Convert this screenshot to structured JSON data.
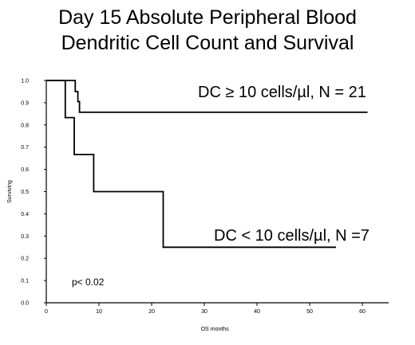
{
  "chart_data": {
    "type": "line",
    "title": [
      "Day 15 Absolute Peripheral Blood",
      "Dendritic Cell Count and Survival"
    ],
    "xlabel": "OS months",
    "ylabel": "Surviving",
    "xlim": [
      0,
      65
    ],
    "ylim": [
      0,
      1.0
    ],
    "x_ticks": [
      "0",
      "10",
      "20",
      "30",
      "40",
      "50",
      "60"
    ],
    "y_ticks": [
      "0.0",
      "0.1",
      "0.2",
      "0.3",
      "0.4",
      "0.5",
      "0.6",
      "0.7",
      "0.8",
      "0.9",
      "1.0"
    ],
    "series": [
      {
        "name": "DC ≥ 10 cells/µl, N = 21",
        "points": [
          [
            0,
            1.0
          ],
          [
            5.5,
            1.0
          ],
          [
            5.5,
            0.95
          ],
          [
            6,
            0.95
          ],
          [
            6,
            0.905
          ],
          [
            6.3,
            0.905
          ],
          [
            6.3,
            0.857
          ],
          [
            61,
            0.857
          ]
        ]
      },
      {
        "name": "DC < 10 cells/µl, N =7",
        "points": [
          [
            0,
            1.0
          ],
          [
            3.6,
            1.0
          ],
          [
            3.6,
            0.833
          ],
          [
            5.3,
            0.833
          ],
          [
            5.3,
            0.667
          ],
          [
            9,
            0.667
          ],
          [
            9,
            0.5
          ],
          [
            22.2,
            0.5
          ],
          [
            22.2,
            0.25
          ],
          [
            55,
            0.25
          ]
        ]
      }
    ],
    "annotations": [
      "p< 0.02"
    ]
  }
}
